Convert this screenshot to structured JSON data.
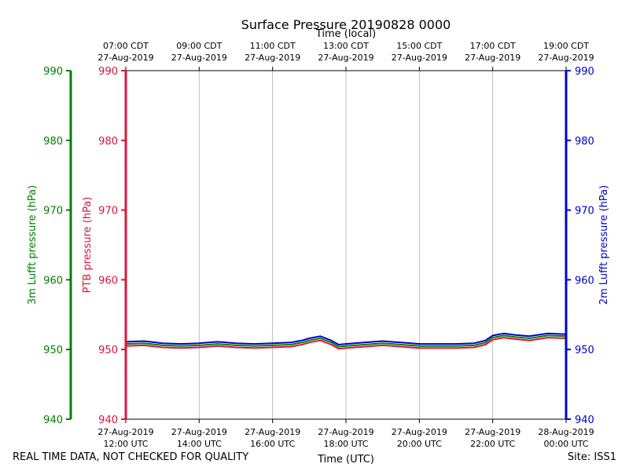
{
  "chart_data": {
    "type": "line",
    "title": "Surface Pressure 20190828 0000",
    "xlabel_top": "Time (local)",
    "xlabel_bottom": "Time (UTC)",
    "x_unit": "hours since 27-Aug-2019 12:00 UTC",
    "xlim": [
      0,
      12
    ],
    "top_ticks": [
      {
        "x": 0,
        "time": "07:00 CDT",
        "date": "27-Aug-2019"
      },
      {
        "x": 2,
        "time": "09:00 CDT",
        "date": "27-Aug-2019"
      },
      {
        "x": 4,
        "time": "11:00 CDT",
        "date": "27-Aug-2019"
      },
      {
        "x": 6,
        "time": "13:00 CDT",
        "date": "27-Aug-2019"
      },
      {
        "x": 8,
        "time": "15:00 CDT",
        "date": "27-Aug-2019"
      },
      {
        "x": 10,
        "time": "17:00 CDT",
        "date": "27-Aug-2019"
      },
      {
        "x": 12,
        "time": "19:00 CDT",
        "date": "27-Aug-2019"
      }
    ],
    "bottom_ticks": [
      {
        "x": 0,
        "date": "27-Aug-2019",
        "time": "12:00 UTC"
      },
      {
        "x": 2,
        "date": "27-Aug-2019",
        "time": "14:00 UTC"
      },
      {
        "x": 4,
        "date": "27-Aug-2019",
        "time": "16:00 UTC"
      },
      {
        "x": 6,
        "date": "27-Aug-2019",
        "time": "18:00 UTC"
      },
      {
        "x": 8,
        "date": "27-Aug-2019",
        "time": "20:00 UTC"
      },
      {
        "x": 10,
        "date": "27-Aug-2019",
        "time": "22:00 UTC"
      },
      {
        "x": 12,
        "date": "28-Aug-2019",
        "time": "00:00 UTC"
      }
    ],
    "ylim": [
      940,
      990
    ],
    "yticks": [
      "940",
      "950",
      "960",
      "970",
      "980",
      "990"
    ],
    "grid_x": true,
    "axes": {
      "left_outer": {
        "label": "3m Lufft pressure (hPa)",
        "color": "#008000"
      },
      "left_inner": {
        "label": "PTB pressure (hPa)",
        "color": "#dc143c"
      },
      "right": {
        "label": "2m Lufft pressure (hPa)",
        "color": "#0000cd"
      }
    },
    "series": [
      {
        "name": "2m Lufft pressure",
        "color": "#0000cd",
        "x": [
          0,
          0.5,
          1,
          1.5,
          2,
          2.5,
          3,
          3.5,
          4,
          4.5,
          4.8,
          5,
          5.3,
          5.6,
          5.8,
          6,
          6.5,
          7,
          7.5,
          8,
          8.5,
          9,
          9.5,
          9.8,
          10,
          10.3,
          10.6,
          11,
          11.5,
          12
        ],
        "y": [
          951.1,
          951.2,
          950.9,
          950.8,
          950.9,
          951.1,
          950.9,
          950.8,
          950.9,
          951.0,
          951.3,
          951.6,
          951.9,
          951.3,
          950.7,
          950.8,
          951.0,
          951.2,
          951.0,
          950.8,
          950.8,
          950.8,
          950.9,
          951.3,
          952.0,
          952.3,
          952.1,
          951.9,
          952.3,
          952.2
        ]
      },
      {
        "name": "3m Lufft pressure",
        "color": "#008000",
        "x": [
          0,
          0.5,
          1,
          1.5,
          2,
          2.5,
          3,
          3.5,
          4,
          4.5,
          4.8,
          5,
          5.3,
          5.6,
          5.8,
          6,
          6.5,
          7,
          7.5,
          8,
          8.5,
          9,
          9.5,
          9.8,
          10,
          10.3,
          10.6,
          11,
          11.5,
          12
        ],
        "y": [
          950.8,
          950.9,
          950.6,
          950.5,
          950.6,
          950.8,
          950.6,
          950.5,
          950.6,
          950.7,
          951.0,
          951.3,
          951.6,
          951.0,
          950.4,
          950.5,
          950.7,
          950.9,
          950.7,
          950.5,
          950.5,
          950.5,
          950.6,
          951.0,
          951.7,
          952.0,
          951.8,
          951.6,
          952.0,
          951.9
        ]
      },
      {
        "name": "PTB pressure",
        "color": "#dc143c",
        "x": [
          0,
          0.5,
          1,
          1.5,
          2,
          2.5,
          3,
          3.5,
          4,
          4.5,
          4.8,
          5,
          5.3,
          5.6,
          5.8,
          6,
          6.5,
          7,
          7.5,
          8,
          8.5,
          9,
          9.5,
          9.8,
          10,
          10.3,
          10.6,
          11,
          11.5,
          12
        ],
        "y": [
          950.5,
          950.6,
          950.3,
          950.2,
          950.3,
          950.5,
          950.3,
          950.2,
          950.3,
          950.4,
          950.7,
          951.0,
          951.3,
          950.7,
          950.1,
          950.2,
          950.4,
          950.6,
          950.4,
          950.2,
          950.2,
          950.2,
          950.3,
          950.7,
          951.4,
          951.7,
          951.5,
          951.3,
          951.7,
          951.6
        ]
      }
    ]
  },
  "footer": {
    "left_note": "REAL TIME DATA, NOT CHECKED FOR QUALITY",
    "site": "Site: ISS1"
  }
}
